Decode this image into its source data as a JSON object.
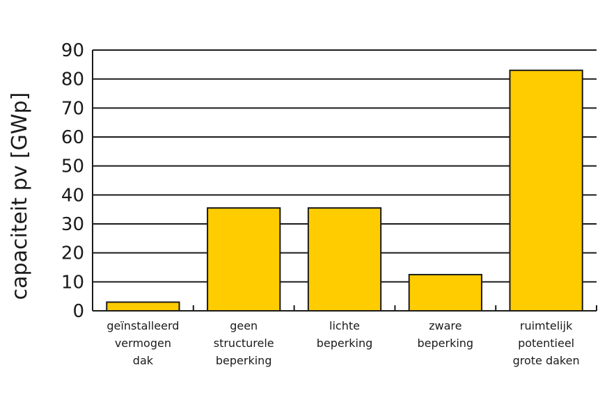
{
  "chart_data": {
    "type": "bar",
    "title": "",
    "xlabel": "",
    "ylabel": "capaciteit pv [GWp]",
    "categories": [
      [
        "geïnstalleerd",
        "vermogen",
        "dak"
      ],
      [
        "geen",
        "structurele",
        "beperking"
      ],
      [
        "lichte",
        "beperking"
      ],
      [
        "zware",
        "beperking"
      ],
      [
        "ruimtelijk",
        "potentieel",
        "grote daken"
      ]
    ],
    "values": [
      3,
      35.5,
      35.5,
      12.5,
      83
    ],
    "ylim": [
      0,
      90
    ],
    "yticks": [
      0,
      10,
      20,
      30,
      40,
      50,
      60,
      70,
      80,
      90
    ],
    "grid": true,
    "bar_color": "#FFCC00",
    "bar_edge_color": "#1a1a1a"
  }
}
